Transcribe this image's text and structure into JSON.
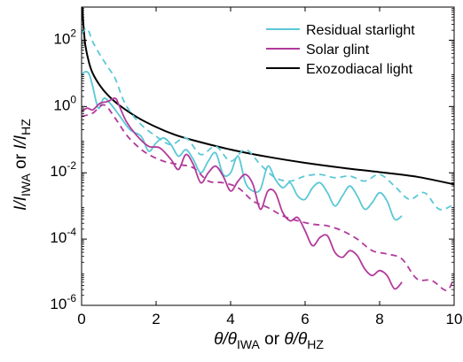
{
  "chart_data": {
    "type": "line",
    "xlim": [
      0,
      10
    ],
    "ylim_log10": [
      -6,
      3
    ],
    "yscale": "log",
    "grid": false,
    "legend_placement": "top-right",
    "x_ticks": [
      0,
      2,
      4,
      6,
      8,
      10
    ],
    "x_tick_labels": [
      "0",
      "2",
      "4",
      "6",
      "8",
      "10"
    ],
    "y_ticks_log10": [
      -6,
      -4,
      -2,
      0,
      2
    ],
    "y_tick_labels": [
      {
        "base": "10",
        "exp": "-6"
      },
      {
        "base": "10",
        "exp": "-4"
      },
      {
        "base": "10",
        "exp": "-2"
      },
      {
        "base": "10",
        "exp": "0"
      },
      {
        "base": "10",
        "exp": "2"
      }
    ],
    "xlabel": {
      "theta": "θ/θ",
      "sub1": "IWA",
      "or": " or ",
      "theta2": "θ/θ",
      "sub2": "HZ"
    },
    "ylabel": {
      "i1": "I/I",
      "sub1": "IWA",
      "or": " or ",
      "i2": "I/I",
      "sub2": "HZ"
    },
    "legend": [
      {
        "label": "Residual starlight",
        "color": "#5bc8d6"
      },
      {
        "label": "Solar glint",
        "color": "#b23a9a"
      },
      {
        "label": "Exozodiacal light",
        "color": "#000000"
      }
    ],
    "series": [
      {
        "name": "Exozodiacal light",
        "color": "#000000",
        "style": "solid",
        "x": [
          0.02,
          0.05,
          0.1,
          0.2,
          0.3,
          0.5,
          0.7,
          1.0,
          1.5,
          2.0,
          2.5,
          3.0,
          4.0,
          5.0,
          6.0,
          7.0,
          8.0,
          9.0,
          10.0
        ],
        "log10y": [
          3.0,
          2.45,
          1.85,
          1.32,
          1.0,
          0.62,
          0.35,
          0.05,
          -0.33,
          -0.62,
          -0.85,
          -1.02,
          -1.3,
          -1.52,
          -1.7,
          -1.85,
          -1.98,
          -2.12,
          -2.35
        ]
      },
      {
        "name": "Residual starlight",
        "color": "#5bc8d6",
        "style": "solid",
        "x": [
          0.0,
          0.1,
          0.2,
          0.3,
          0.45,
          0.6,
          0.8,
          1.0,
          1.3,
          1.6,
          1.8,
          2.0,
          2.2,
          2.4,
          2.6,
          2.8,
          3.0,
          3.2,
          3.4,
          3.6,
          3.8,
          4.0,
          4.2,
          4.4,
          4.6,
          4.8,
          5.0,
          5.2,
          5.4,
          5.6,
          5.8,
          6.0,
          6.2,
          6.4,
          6.6,
          6.8,
          7.0,
          7.2,
          7.4,
          7.6,
          7.8,
          8.0,
          8.2,
          8.4,
          8.6
        ],
        "log10y": [
          0.95,
          1.05,
          0.98,
          0.6,
          -0.05,
          0.25,
          0.05,
          -0.25,
          -0.7,
          -0.9,
          -1.35,
          -1.1,
          -0.95,
          -1.15,
          -1.5,
          -1.3,
          -1.6,
          -2.0,
          -1.65,
          -1.4,
          -2.05,
          -2.0,
          -1.5,
          -2.3,
          -2.55,
          -2.5,
          -1.8,
          -2.2,
          -2.45,
          -2.3,
          -2.7,
          -2.8,
          -2.45,
          -2.3,
          -2.6,
          -3.0,
          -2.7,
          -2.4,
          -2.7,
          -3.1,
          -2.9,
          -2.6,
          -2.85,
          -3.4,
          -3.3
        ]
      },
      {
        "name": "Residual starlight (dashed)",
        "color": "#5bc8d6",
        "style": "dashed",
        "x": [
          0.0,
          0.15,
          0.3,
          0.5,
          0.7,
          0.9,
          1.1,
          1.3,
          1.6,
          2.0,
          2.4,
          2.8,
          3.2,
          3.6,
          4.0,
          4.4,
          4.8,
          5.2,
          5.6,
          6.0,
          6.4,
          6.8,
          7.2,
          7.6,
          8.0,
          8.4,
          8.8,
          9.2,
          9.6,
          10.0
        ],
        "log10y": [
          2.2,
          2.35,
          1.95,
          1.55,
          1.2,
          0.85,
          0.25,
          -0.15,
          -0.55,
          -0.9,
          -1.15,
          -0.95,
          -1.45,
          -1.2,
          -1.65,
          -1.3,
          -1.75,
          -2.15,
          -2.25,
          -2.1,
          -2.05,
          -2.15,
          -2.1,
          -2.25,
          -2.05,
          -2.4,
          -2.8,
          -2.6,
          -3.1,
          -2.95
        ]
      },
      {
        "name": "Solar glint",
        "color": "#b23a9a",
        "style": "solid",
        "x": [
          0.0,
          0.15,
          0.3,
          0.5,
          0.7,
          0.9,
          1.0,
          1.2,
          1.5,
          1.8,
          2.1,
          2.4,
          2.6,
          2.8,
          3.0,
          3.2,
          3.4,
          3.6,
          3.8,
          4.0,
          4.2,
          4.4,
          4.6,
          4.8,
          5.0,
          5.2,
          5.4,
          5.6,
          5.8,
          6.0,
          6.2,
          6.4,
          6.6,
          6.8,
          7.0,
          7.2,
          7.4,
          7.6,
          7.8,
          8.0,
          8.2,
          8.4,
          8.6
        ],
        "log10y": [
          -0.15,
          -0.05,
          -0.1,
          0.1,
          0.15,
          0.25,
          0.05,
          -0.45,
          -0.9,
          -1.2,
          -1.25,
          -1.6,
          -1.9,
          -1.45,
          -1.75,
          -2.3,
          -2.0,
          -1.8,
          -2.1,
          -2.55,
          -2.25,
          -2.05,
          -2.35,
          -3.1,
          -2.55,
          -2.6,
          -3.2,
          -3.45,
          -3.35,
          -3.75,
          -4.2,
          -3.95,
          -3.9,
          -4.4,
          -4.55,
          -4.35,
          -4.5,
          -4.9,
          -5.1,
          -4.95,
          -5.1,
          -5.5,
          -5.3
        ]
      },
      {
        "name": "Solar glint (dashed)",
        "color": "#b23a9a",
        "style": "dashed",
        "x": [
          0.0,
          0.3,
          0.6,
          0.9,
          1.2,
          1.5,
          1.8,
          2.2,
          2.6,
          3.0,
          3.4,
          3.8,
          4.2,
          4.6,
          5.0,
          5.4,
          5.8,
          6.2,
          6.6,
          7.0,
          7.4,
          7.8,
          8.2,
          8.6,
          9.0,
          9.4,
          9.8,
          10.0
        ],
        "log10y": [
          -0.3,
          -0.2,
          0.05,
          -0.35,
          -0.85,
          -1.2,
          -1.45,
          -1.65,
          -1.75,
          -1.85,
          -2.25,
          -2.3,
          -2.45,
          -2.85,
          -3.05,
          -3.3,
          -3.45,
          -3.55,
          -3.6,
          -3.75,
          -4.0,
          -4.35,
          -4.45,
          -4.6,
          -5.2,
          -5.25,
          -5.55,
          -5.15
        ]
      }
    ]
  }
}
